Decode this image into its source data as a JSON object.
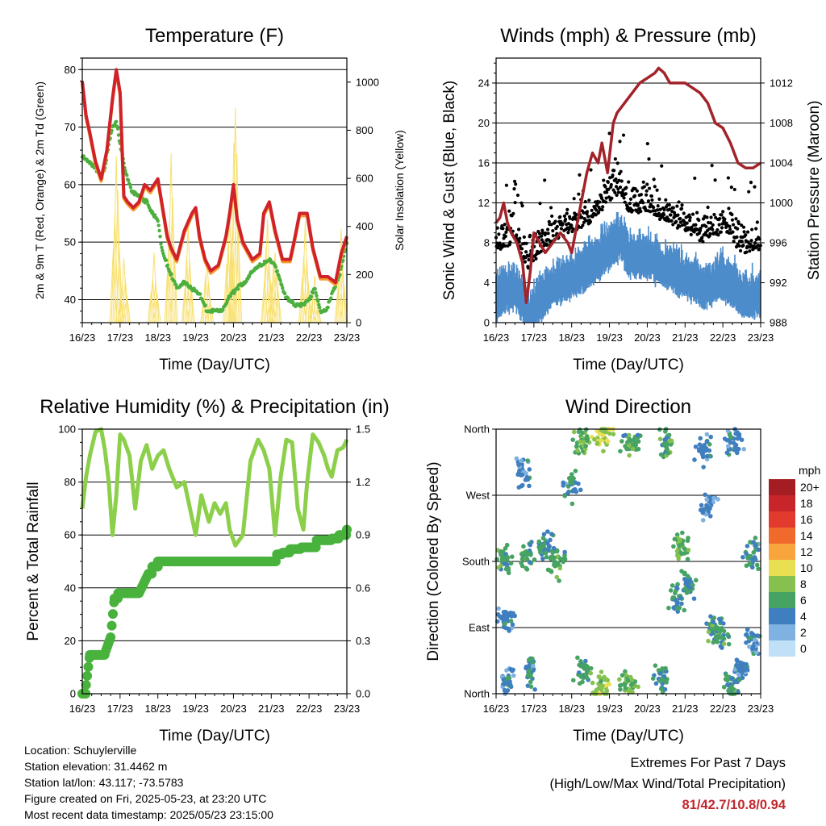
{
  "colors": {
    "temp_2m": "#d0222a",
    "temp_9m": "#f59a2b",
    "dewpoint": "#4caf3e",
    "insolation": "#f8e06e",
    "wind": "#4d8ccb",
    "gust": "#000000",
    "pressure": "#a3232a",
    "rh": "#8ccf4b",
    "precip": "#48b23d"
  },
  "chart_data": [
    {
      "type": "line",
      "title": "Temperature (F)",
      "xlabel": "Time (Day/UTC)",
      "ylabel": "2m & 9m T (Red, Orange) & 2m Td (Green)",
      "ylabel_right": "Solar Insolation (Yellow)",
      "x_ticks": [
        "16/23",
        "17/23",
        "18/23",
        "19/23",
        "20/23",
        "21/23",
        "22/23",
        "23/23"
      ],
      "y_ticks": [
        40,
        50,
        60,
        70,
        80
      ],
      "y2_ticks": [
        0,
        200,
        400,
        600,
        800,
        1000
      ],
      "xlim": [
        0,
        7
      ],
      "ylim": [
        36,
        82
      ],
      "y2lim": [
        0,
        1100
      ],
      "grid": "horizontal",
      "series": [
        {
          "key": "temp",
          "x": [
            0,
            0.1,
            0.2,
            0.35,
            0.5,
            0.65,
            0.8,
            0.9,
            1.0,
            1.1,
            1.2,
            1.35,
            1.5,
            1.65,
            1.8,
            2.0,
            2.1,
            2.25,
            2.35,
            2.5,
            2.7,
            2.9,
            3.0,
            3.1,
            3.25,
            3.4,
            3.6,
            3.8,
            3.9,
            4.0,
            4.1,
            4.25,
            4.5,
            4.7,
            4.8,
            4.95,
            5.1,
            5.3,
            5.5,
            5.6,
            5.75,
            5.95,
            6.1,
            6.3,
            6.5,
            6.7,
            6.85,
            7.0
          ],
          "y": [
            78,
            72,
            69,
            64,
            61,
            66,
            75,
            80,
            76,
            58,
            57,
            56,
            57,
            60,
            59,
            61,
            57,
            51,
            49,
            47,
            52,
            55,
            56,
            51,
            47,
            45,
            46,
            51,
            55,
            60,
            54,
            50,
            47,
            48,
            55,
            57,
            52,
            47,
            47,
            50,
            55,
            55,
            49,
            44,
            44,
            43,
            48,
            51
          ]
        },
        {
          "key": "dew",
          "x": [
            0,
            0.15,
            0.35,
            0.5,
            0.6,
            0.7,
            0.8,
            0.9,
            1.0,
            1.15,
            1.3,
            1.5,
            1.7,
            1.85,
            2.0,
            2.1,
            2.3,
            2.5,
            2.7,
            2.9,
            3.1,
            3.3,
            3.5,
            3.7,
            3.85,
            3.95,
            4.1,
            4.3,
            4.5,
            4.7,
            4.95,
            5.1,
            5.35,
            5.6,
            5.8,
            6.0,
            6.15,
            6.3,
            6.45,
            6.6,
            6.8,
            7.0
          ],
          "y": [
            65,
            64,
            63,
            61,
            63,
            67,
            70,
            71,
            67,
            62,
            59,
            58,
            57,
            55,
            54,
            49,
            45,
            42,
            43,
            42,
            41,
            38,
            38,
            38,
            40,
            41,
            42,
            43,
            45,
            46,
            47,
            46,
            41,
            39,
            39,
            40,
            42,
            38,
            38,
            41,
            44,
            50
          ]
        },
        {
          "key": "sun",
          "peaks": [
            [
              0.9,
              700
            ],
            [
              1.1,
              250
            ],
            [
              1.9,
              280
            ],
            [
              2.35,
              680
            ],
            [
              2.8,
              400
            ],
            [
              3.3,
              250
            ],
            [
              3.9,
              530
            ],
            [
              4.05,
              950
            ],
            [
              4.9,
              410
            ],
            [
              5.1,
              350
            ],
            [
              5.9,
              420
            ],
            [
              6.15,
              180
            ],
            [
              6.85,
              390
            ]
          ]
        }
      ]
    },
    {
      "type": "scatter",
      "title": "Winds (mph) & Pressure (mb)",
      "xlabel": "Time (Day/UTC)",
      "ylabel": "Sonic Wind & Gust (Blue, Black)",
      "ylabel_right": "Station Pressure (Maroon)",
      "x_ticks": [
        "16/23",
        "17/23",
        "18/23",
        "19/23",
        "20/23",
        "21/23",
        "22/23",
        "23/23"
      ],
      "y_ticks": [
        0,
        4,
        8,
        12,
        16,
        20,
        24
      ],
      "y2_ticks": [
        988,
        992,
        996,
        1000,
        1004,
        1008,
        1012
      ],
      "xlim": [
        0,
        7
      ],
      "ylim": [
        0,
        26.5
      ],
      "y2lim": [
        988,
        1014.5
      ],
      "grid": "horizontal",
      "series": [
        {
          "key": "pressure",
          "x": [
            0,
            0.1,
            0.2,
            0.3,
            0.4,
            0.55,
            0.7,
            0.8,
            0.9,
            1.0,
            1.15,
            1.3,
            1.5,
            1.7,
            1.9,
            2.0,
            2.15,
            2.3,
            2.4,
            2.55,
            2.7,
            2.8,
            2.95,
            3.1,
            3.2,
            3.4,
            3.6,
            3.8,
            4.0,
            4.2,
            4.3,
            4.45,
            4.6,
            4.8,
            5.0,
            5.2,
            5.4,
            5.6,
            5.8,
            6.0,
            6.2,
            6.4,
            6.6,
            6.8,
            7.0
          ],
          "y": [
            998,
            998.5,
            1000,
            998,
            997,
            996,
            994,
            990,
            993,
            997,
            996,
            995,
            996,
            997,
            996,
            995,
            998,
            1001,
            1003,
            1005,
            1004,
            1006,
            1003,
            1008,
            1009,
            1010,
            1011,
            1012,
            1012.5,
            1013,
            1013.5,
            1013,
            1012,
            1012,
            1012,
            1011.5,
            1011,
            1010,
            1008,
            1007.5,
            1006,
            1004,
            1003.5,
            1003.5,
            1004
          ]
        },
        {
          "key": "wind_envelope",
          "x": [
            0,
            0.5,
            0.9,
            1.0,
            1.5,
            2.0,
            2.5,
            3.0,
            3.3,
            3.5,
            4.0,
            4.5,
            5.0,
            5.5,
            6.0,
            6.5,
            7.0
          ],
          "y": [
            4,
            5,
            2,
            3,
            5,
            6,
            7,
            9,
            10,
            8,
            8,
            7,
            6,
            5,
            6,
            4,
            4
          ]
        }
      ]
    },
    {
      "type": "line",
      "title": "Relative Humidity (%) & Precipitation (in)",
      "xlabel": "Time (Day/UTC)",
      "ylabel": "Percent & Total Rainfall",
      "x_ticks": [
        "16/23",
        "17/23",
        "18/23",
        "19/23",
        "20/23",
        "21/23",
        "22/23",
        "23/23"
      ],
      "y_ticks": [
        0,
        20,
        40,
        60,
        80,
        100
      ],
      "y2_ticks": [
        "0.0",
        "0.3",
        "0.6",
        "0.9",
        "1.2",
        "1.5"
      ],
      "xlim": [
        0,
        7
      ],
      "ylim": [
        0,
        100
      ],
      "y2lim": [
        0,
        1.5
      ],
      "grid": "horizontal",
      "series": [
        {
          "key": "rh",
          "x": [
            0,
            0.1,
            0.2,
            0.35,
            0.5,
            0.6,
            0.7,
            0.8,
            0.9,
            1.0,
            1.1,
            1.25,
            1.4,
            1.55,
            1.7,
            1.85,
            2.0,
            2.15,
            2.3,
            2.5,
            2.7,
            2.85,
            3.0,
            3.15,
            3.35,
            3.5,
            3.65,
            3.8,
            3.9,
            4.05,
            4.25,
            4.45,
            4.65,
            4.8,
            4.95,
            5.1,
            5.25,
            5.4,
            5.55,
            5.7,
            5.85,
            5.95,
            6.1,
            6.25,
            6.4,
            6.5,
            6.6,
            6.75,
            6.9,
            7.0
          ],
          "y": [
            70,
            82,
            90,
            99,
            100,
            92,
            80,
            60,
            75,
            98,
            96,
            90,
            70,
            88,
            94,
            85,
            90,
            92,
            85,
            78,
            80,
            70,
            60,
            75,
            65,
            72,
            68,
            72,
            62,
            56,
            60,
            88,
            96,
            92,
            85,
            60,
            82,
            96,
            95,
            70,
            62,
            80,
            98,
            95,
            90,
            85,
            82,
            92,
            93,
            96
          ]
        },
        {
          "key": "precip",
          "x": [
            0,
            0.1,
            0.2,
            0.35,
            0.6,
            0.75,
            0.85,
            0.95,
            1.1,
            1.3,
            1.5,
            1.75,
            1.85,
            2.0,
            2.2,
            2.5,
            3.0,
            3.5,
            4.0,
            4.5,
            5.0,
            5.15,
            5.3,
            5.5,
            5.8,
            6.0,
            6.2,
            6.4,
            6.6,
            6.8,
            7.0
          ],
          "y": [
            0,
            0.05,
            0.22,
            0.22,
            0.23,
            0.32,
            0.54,
            0.57,
            0.57,
            0.57,
            0.57,
            0.68,
            0.72,
            0.75,
            0.75,
            0.75,
            0.75,
            0.75,
            0.75,
            0.75,
            0.75,
            0.79,
            0.8,
            0.82,
            0.83,
            0.83,
            0.87,
            0.87,
            0.88,
            0.9,
            0.93
          ]
        }
      ]
    },
    {
      "type": "scatter",
      "title": "Wind Direction",
      "xlabel": "Time (Day/UTC)",
      "ylabel": "Direction (Colored By Speed)",
      "x_ticks": [
        "16/23",
        "17/23",
        "18/23",
        "19/23",
        "20/23",
        "21/23",
        "22/23",
        "23/23"
      ],
      "y_ticks": [
        "North",
        "East",
        "South",
        "West",
        "North"
      ],
      "xlim": [
        0,
        7
      ],
      "ylim": [
        0,
        360
      ],
      "grid": "horizontal",
      "legend": {
        "unit": "mph",
        "labels": [
          "20+",
          "18",
          "16",
          "14",
          "12",
          "10",
          "8",
          "6",
          "4",
          "2",
          "0"
        ],
        "colors": [
          "#a41d22",
          "#c8252a",
          "#e23a2c",
          "#f06a2c",
          "#f7a53c",
          "#e9df52",
          "#86c150",
          "#46a363",
          "#3f7fbf",
          "#7fb2e0",
          "#bfe0f6"
        ]
      },
      "clusters": [
        [
          0.2,
          180,
          1.0,
          6
        ],
        [
          0.3,
          100,
          0.8,
          4
        ],
        [
          0.3,
          20,
          0.7,
          4
        ],
        [
          0.7,
          300,
          0.6,
          4
        ],
        [
          0.8,
          190,
          0.5,
          6
        ],
        [
          0.9,
          30,
          0.4,
          5
        ],
        [
          1.3,
          200,
          0.6,
          5
        ],
        [
          1.6,
          180,
          0.7,
          6
        ],
        [
          2.0,
          280,
          0.6,
          5
        ],
        [
          2.3,
          340,
          0.6,
          7
        ],
        [
          2.3,
          30,
          0.6,
          6
        ],
        [
          2.8,
          350,
          0.8,
          9
        ],
        [
          2.8,
          10,
          0.7,
          8
        ],
        [
          3.5,
          15,
          1.0,
          7
        ],
        [
          3.6,
          340,
          0.8,
          6
        ],
        [
          4.4,
          20,
          0.6,
          5
        ],
        [
          4.5,
          340,
          0.6,
          6
        ],
        [
          4.8,
          130,
          0.6,
          5
        ],
        [
          4.9,
          200,
          0.7,
          7
        ],
        [
          5.1,
          150,
          0.5,
          5
        ],
        [
          5.5,
          330,
          0.7,
          4
        ],
        [
          5.6,
          260,
          0.6,
          4
        ],
        [
          5.8,
          90,
          0.7,
          5
        ],
        [
          5.9,
          80,
          0.7,
          6
        ],
        [
          6.2,
          10,
          0.8,
          5
        ],
        [
          6.3,
          340,
          0.7,
          4
        ],
        [
          6.5,
          30,
          0.6,
          4
        ],
        [
          6.8,
          190,
          0.6,
          5
        ],
        [
          6.8,
          70,
          0.6,
          4
        ]
      ]
    }
  ],
  "info": {
    "location": "Location: Schuylerville",
    "elevation": "Station elevation: 31.4462 m",
    "latlon": "Station lat/lon: 43.117; -73.5783",
    "created": "Figure created on Fri, 2025-05-23, at 23:20 UTC",
    "recent": "Most recent data timestamp: 2025/05/23 23:15:00"
  },
  "extremes": {
    "line1": "Extremes For Past 7 Days",
    "line2": "(High/Low/Max Wind/Total Precipitation)",
    "values": "81/42.7/10.8/0.94"
  }
}
